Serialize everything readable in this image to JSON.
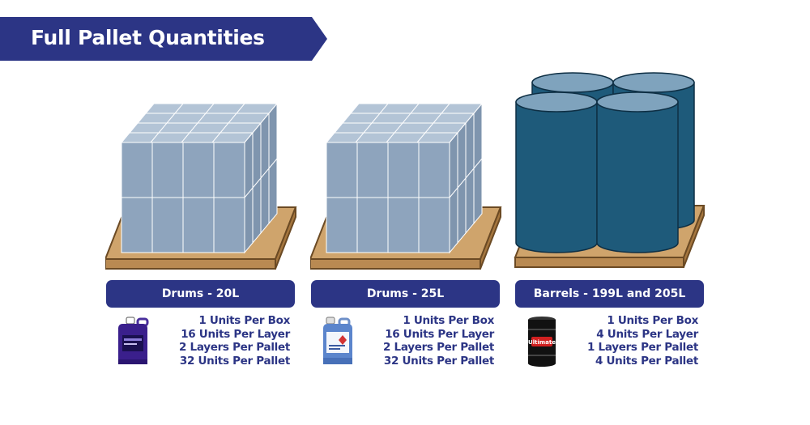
{
  "title": "Full Pallet Quantities",
  "colors": {
    "brand": "#2c3585",
    "box": "#8ea4bd",
    "barrel": "#1e5a7a",
    "pallet": "#c9a06a"
  },
  "pallets": [
    {
      "label": "Drums - 20L",
      "product_icon": "purple-jerrycan-icon",
      "lines": [
        "1 Units Per Box",
        "16 Units Per Layer",
        "2 Layers Per Pallet",
        "32 Units Per Pallet"
      ]
    },
    {
      "label": "Drums - 25L",
      "product_icon": "blue-jerrycan-icon",
      "lines": [
        "1 Units Per Box",
        "16 Units Per Layer",
        "2 Layers Per Pallet",
        "32 Units Per Pallet"
      ]
    },
    {
      "label": "Barrels - 199L and 205L",
      "product_icon": "black-barrel-icon",
      "product_brand_text": "Ultimate",
      "lines": [
        "1 Units Per Box",
        "4 Units Per Layer",
        "1 Layers Per Pallet",
        "4 Units Per Pallet"
      ]
    }
  ]
}
